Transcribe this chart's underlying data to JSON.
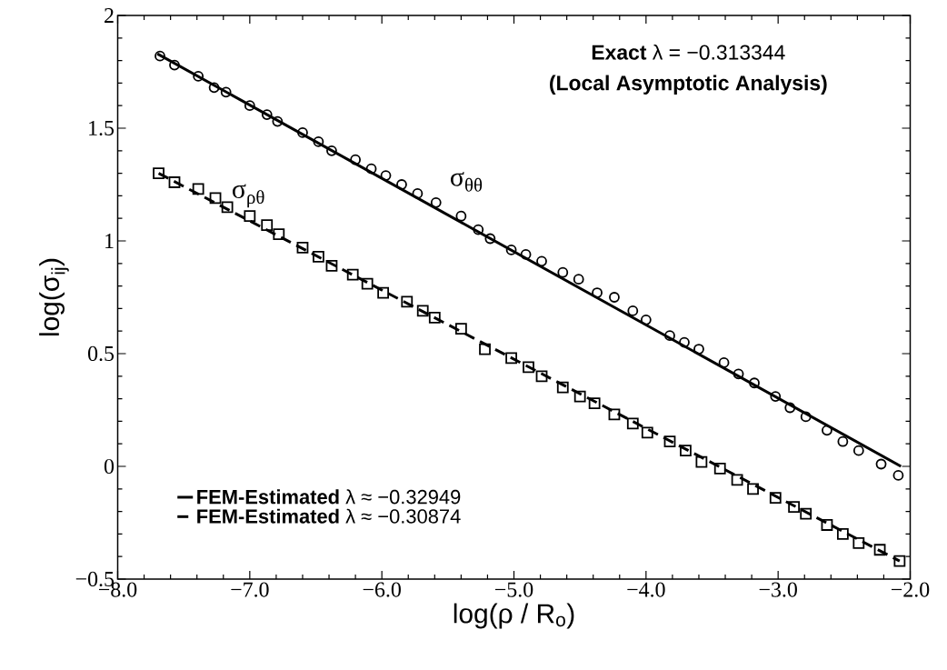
{
  "chart_data": {
    "type": "scatter",
    "xlabel": "log(ρ / R$_{o}$)",
    "ylabel": "log(σ$_{ij}$)",
    "xlim": [
      -8,
      -2
    ],
    "ylim": [
      -0.5,
      2
    ],
    "xticks": [
      {
        "value": -8,
        "label": "−8.0"
      },
      {
        "value": -7,
        "label": "−7.0"
      },
      {
        "value": -6,
        "label": "−6.0"
      },
      {
        "value": -5,
        "label": "−5.0"
      },
      {
        "value": -4,
        "label": "−4.0"
      },
      {
        "value": -3,
        "label": "−3.0"
      },
      {
        "value": -2,
        "label": "−2.0"
      }
    ],
    "yticks": [
      {
        "value": -0.5,
        "label": "−0.5"
      },
      0,
      0.5,
      1,
      1.5,
      2
    ],
    "legend": "bottom left",
    "annotations": [
      "**Exact** λ = −0.313344",
      "(Local Asymptotic Analysis)",
      "σ$_{θθ}$",
      "σ$_{ρθ}$"
    ],
    "series": [
      {
        "marker": "circle",
        "color": "#000000",
        "x": [
          -7.68,
          -7.57,
          -7.39,
          -7.27,
          -7.18,
          -7.0,
          -6.87,
          -6.79,
          -6.6,
          -6.48,
          -6.38,
          -6.2,
          -6.08,
          -5.97,
          -5.85,
          -5.73,
          -5.59,
          -5.4,
          -5.27,
          -5.18,
          -5.02,
          -4.91,
          -4.79,
          -4.63,
          -4.51,
          -4.37,
          -4.24,
          -4.1,
          -4.0,
          -3.82,
          -3.71,
          -3.6,
          -3.41,
          -3.3,
          -3.18,
          -3.02,
          -2.91,
          -2.79,
          -2.63,
          -2.51,
          -2.39,
          -2.22,
          -2.09
        ],
        "values": [
          1.82,
          1.78,
          1.73,
          1.68,
          1.66,
          1.6,
          1.56,
          1.53,
          1.48,
          1.44,
          1.4,
          1.36,
          1.32,
          1.29,
          1.25,
          1.21,
          1.17,
          1.11,
          1.05,
          1.01,
          0.96,
          0.94,
          0.91,
          0.86,
          0.83,
          0.77,
          0.75,
          0.69,
          0.65,
          0.58,
          0.55,
          0.52,
          0.46,
          0.41,
          0.37,
          0.31,
          0.26,
          0.22,
          0.16,
          0.11,
          0.07,
          0.01,
          -0.04
        ]
      },
      {
        "marker": "square",
        "color": "#000000",
        "x": [
          -7.69,
          -7.57,
          -7.39,
          -7.26,
          -7.17,
          -7.0,
          -6.87,
          -6.78,
          -6.6,
          -6.48,
          -6.38,
          -6.22,
          -6.11,
          -5.99,
          -5.81,
          -5.69,
          -5.6,
          -5.4,
          -5.22,
          -5.02,
          -4.89,
          -4.79,
          -4.63,
          -4.5,
          -4.39,
          -4.24,
          -4.1,
          -3.99,
          -3.82,
          -3.7,
          -3.58,
          -3.44,
          -3.31,
          -3.19,
          -3.02,
          -2.88,
          -2.79,
          -2.63,
          -2.51,
          -2.39,
          -2.23,
          -2.08
        ],
        "values": [
          1.3,
          1.26,
          1.23,
          1.19,
          1.15,
          1.11,
          1.07,
          1.03,
          0.97,
          0.93,
          0.89,
          0.85,
          0.81,
          0.77,
          0.73,
          0.69,
          0.66,
          0.61,
          0.52,
          0.48,
          0.44,
          0.4,
          0.35,
          0.31,
          0.28,
          0.23,
          0.19,
          0.15,
          0.11,
          0.07,
          0.02,
          -0.01,
          -0.06,
          -0.1,
          -0.14,
          -0.18,
          -0.21,
          -0.26,
          -0.3,
          -0.34,
          -0.37,
          -0.42
        ]
      },
      {
        "type": "line",
        "name": "**FEM-Estimated** λ ≈ −0.32949",
        "line_style": "solid",
        "color": "#000000",
        "x": [
          -7.7,
          -2.07
        ],
        "values": [
          1.83,
          0.0
        ]
      },
      {
        "type": "line",
        "name": "**FEM-Estimated** λ ≈ −0.30874",
        "line_style": "dashed",
        "color": "#000000",
        "x": [
          -7.69,
          -2.08
        ],
        "values": [
          1.3,
          -0.42
        ]
      }
    ]
  }
}
